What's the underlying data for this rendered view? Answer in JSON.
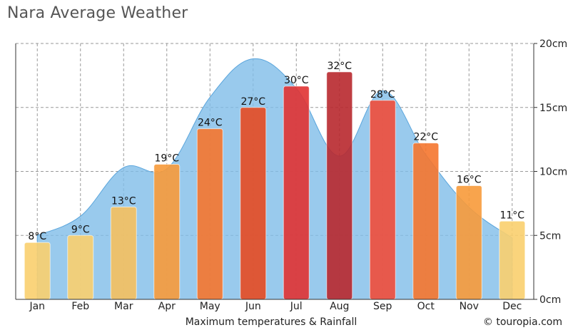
{
  "title": "Nara Average Weather",
  "chart_data": {
    "type": "bar",
    "categories": [
      "Jan",
      "Feb",
      "Mar",
      "Apr",
      "May",
      "Jun",
      "Jul",
      "Aug",
      "Sep",
      "Oct",
      "Nov",
      "Dec"
    ],
    "series": [
      {
        "type": "bar",
        "unit": "°C",
        "values": [
          8,
          9,
          13,
          19,
          24,
          27,
          30,
          32,
          28,
          22,
          16,
          11
        ],
        "colors": [
          "#f9cf6e",
          "#f9cf6e",
          "#f5c05e",
          "#f79a3a",
          "#f5762d",
          "#e64a21",
          "#e03232",
          "#b8282e",
          "#f04c3a",
          "#f5762d",
          "#f79a3a",
          "#f9cf6e"
        ]
      },
      {
        "type": "area",
        "unit": "cm",
        "values": [
          5,
          6.5,
          10.3,
          10.2,
          15.8,
          18.8,
          16.5,
          11.2,
          16.3,
          11.3,
          7.2,
          4.8
        ],
        "color": "#7fbde8"
      }
    ],
    "temp_range": [
      0,
      36
    ],
    "y_right": {
      "ticks": [
        "0cm",
        "5cm",
        "10cm",
        "15cm",
        "20cm"
      ],
      "range": [
        0,
        20
      ]
    },
    "xlabel": "Maximum temperatures & Rainfall",
    "credit": "© touropia.com",
    "grid": true
  }
}
